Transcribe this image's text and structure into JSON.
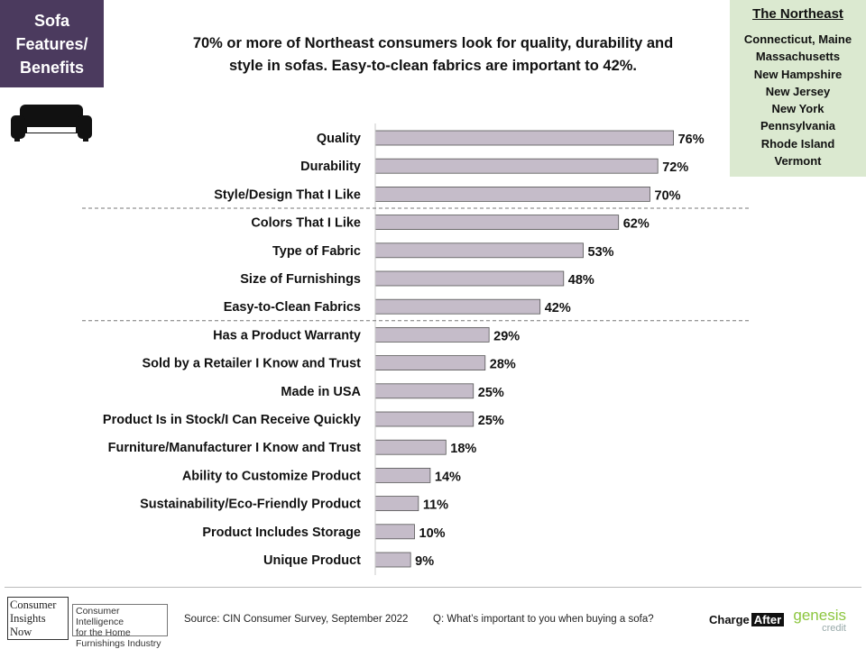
{
  "header": {
    "tag_lines": [
      "Sofa",
      "Features/",
      "Benefits"
    ],
    "headline_lines": [
      "70% or more of Northeast consumers look for quality, durability and",
      "style in sofas. Easy-to-clean fabrics are important to 42%."
    ]
  },
  "region": {
    "title": "The Northeast",
    "states": [
      "Connecticut, Maine",
      "Massachusetts",
      "New Hampshire",
      "New Jersey",
      "New York",
      "Pennsylvania",
      "Rhode Island",
      "Vermont"
    ]
  },
  "icons": {
    "sofa": "sofa-icon"
  },
  "colors": {
    "tag_bg": "#4b3a5e",
    "region_bg": "#dbe9d0",
    "bar_fill": "#c5bcc9",
    "bar_stroke": "#555555"
  },
  "chart_data": {
    "type": "bar",
    "orientation": "horizontal",
    "categories": [
      "Quality",
      "Durability",
      "Style/Design That I Like",
      "Colors That I Like",
      "Type of Fabric",
      "Size of Furnishings",
      "Easy-to-Clean Fabrics",
      "Has a Product Warranty",
      "Sold by a Retailer I Know and Trust",
      "Made in USA",
      "Product Is in Stock/I Can Receive Quickly",
      "Furniture/Manufacturer I Know and Trust",
      "Ability to Customize Product",
      "Sustainability/Eco-Friendly Product",
      "Product Includes Storage",
      "Unique Product"
    ],
    "values": [
      76,
      72,
      70,
      62,
      53,
      48,
      42,
      29,
      28,
      25,
      25,
      18,
      14,
      11,
      10,
      9
    ],
    "value_labels": [
      "76%",
      "72%",
      "70%",
      "62%",
      "53%",
      "48%",
      "42%",
      "29%",
      "28%",
      "25%",
      "25%",
      "18%",
      "14%",
      "11%",
      "10%",
      "9%"
    ],
    "group_dividers_after_index": [
      2,
      6
    ],
    "xlim": [
      0,
      100
    ],
    "grid": false,
    "legend": "none"
  },
  "footer": {
    "logo_lines": [
      "Consumer",
      "Insights",
      "Now"
    ],
    "tagline_lines": [
      "Consumer Intelligence",
      "for the Home",
      "Furnishings Industry"
    ],
    "source": "Source: CIN Consumer Survey, September  2022",
    "question": "Q: What’s important to you when buying a sofa?",
    "partner1_a": "Charge",
    "partner1_b": "After",
    "partner2_a": "genesis",
    "partner2_b": "credit"
  }
}
